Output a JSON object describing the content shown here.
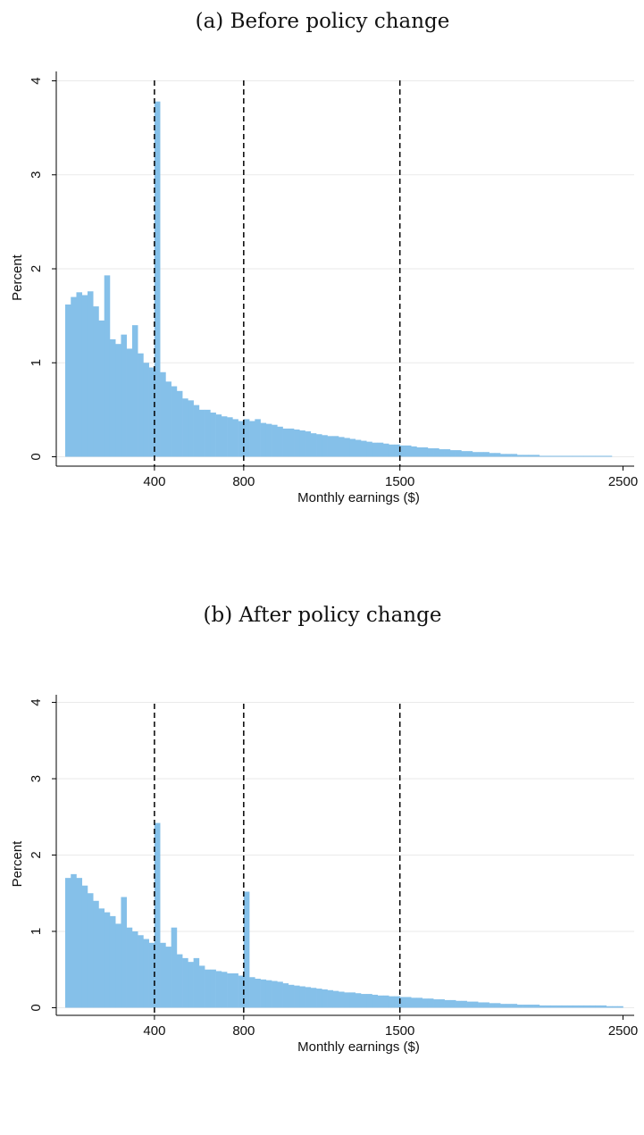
{
  "chart_data": [
    {
      "type": "histogram",
      "title": "(a) Before policy change",
      "x_label": "Monthly earnings ($)",
      "y_label": "Percent",
      "color": "#85c0e9",
      "grid": true,
      "bins": [
        0,
        25,
        50,
        75,
        100,
        125,
        150,
        175,
        200,
        225,
        250,
        275,
        300,
        325,
        350,
        375,
        400,
        425,
        450,
        475,
        500,
        525,
        550,
        575,
        600,
        625,
        650,
        675,
        700,
        725,
        750,
        775,
        800,
        825,
        850,
        875,
        900,
        925,
        950,
        975,
        1000,
        1025,
        1050,
        1075,
        1100,
        1125,
        1150,
        1175,
        1200,
        1225,
        1250,
        1275,
        1300,
        1325,
        1350,
        1375,
        1400,
        1425,
        1450,
        1475,
        1500,
        1525,
        1550,
        1575,
        1600,
        1625,
        1650,
        1675,
        1700,
        1725,
        1750,
        1775,
        1800,
        1825,
        1850,
        1875,
        1900,
        1925,
        1950,
        1975,
        2000,
        2025,
        2050,
        2075,
        2100,
        2125,
        2150,
        2175,
        2200,
        2225,
        2250,
        2275,
        2300,
        2325,
        2350,
        2375,
        2400,
        2425,
        2450
      ],
      "values": [
        1.62,
        1.7,
        1.75,
        1.72,
        1.76,
        1.6,
        1.45,
        1.93,
        1.25,
        1.2,
        1.3,
        1.15,
        1.4,
        1.1,
        1.0,
        0.95,
        3.78,
        0.9,
        0.8,
        0.75,
        0.7,
        0.62,
        0.6,
        0.55,
        0.5,
        0.5,
        0.47,
        0.45,
        0.43,
        0.42,
        0.4,
        0.38,
        0.4,
        0.38,
        0.4,
        0.36,
        0.35,
        0.34,
        0.32,
        0.3,
        0.3,
        0.29,
        0.28,
        0.27,
        0.25,
        0.24,
        0.23,
        0.22,
        0.22,
        0.21,
        0.2,
        0.19,
        0.18,
        0.17,
        0.16,
        0.15,
        0.15,
        0.14,
        0.13,
        0.13,
        0.12,
        0.12,
        0.11,
        0.1,
        0.1,
        0.09,
        0.09,
        0.08,
        0.08,
        0.07,
        0.07,
        0.06,
        0.06,
        0.05,
        0.05,
        0.05,
        0.04,
        0.04,
        0.03,
        0.03,
        0.03,
        0.02,
        0.02,
        0.02,
        0.02,
        0.01,
        0.01,
        0.01,
        0.01,
        0.01,
        0.01,
        0.01,
        0.01,
        0.01,
        0.01,
        0.01,
        0.01,
        0.01
      ],
      "vlines": [
        400,
        800,
        1500
      ],
      "xlim": [
        -40,
        2550
      ],
      "xticks": [
        400,
        800,
        1500,
        2500
      ],
      "ylim": [
        -0.1,
        4.1
      ],
      "yticks": [
        0,
        1,
        2,
        3,
        4
      ]
    },
    {
      "type": "histogram",
      "title": "(b) After policy change",
      "x_label": "Monthly earnings ($)",
      "y_label": "Percent",
      "color": "#85c0e9",
      "grid": true,
      "bins": [
        0,
        25,
        50,
        75,
        100,
        125,
        150,
        175,
        200,
        225,
        250,
        275,
        300,
        325,
        350,
        375,
        400,
        425,
        450,
        475,
        500,
        525,
        550,
        575,
        600,
        625,
        650,
        675,
        700,
        725,
        750,
        775,
        800,
        825,
        850,
        875,
        900,
        925,
        950,
        975,
        1000,
        1025,
        1050,
        1075,
        1100,
        1125,
        1150,
        1175,
        1200,
        1225,
        1250,
        1275,
        1300,
        1325,
        1350,
        1375,
        1400,
        1425,
        1450,
        1475,
        1500,
        1525,
        1550,
        1575,
        1600,
        1625,
        1650,
        1675,
        1700,
        1725,
        1750,
        1775,
        1800,
        1825,
        1850,
        1875,
        1900,
        1925,
        1950,
        1975,
        2000,
        2025,
        2050,
        2075,
        2100,
        2125,
        2150,
        2175,
        2200,
        2225,
        2250,
        2275,
        2300,
        2325,
        2350,
        2375,
        2400,
        2425,
        2450,
        2475,
        2500
      ],
      "values": [
        1.7,
        1.75,
        1.7,
        1.6,
        1.5,
        1.4,
        1.3,
        1.25,
        1.2,
        1.1,
        1.45,
        1.05,
        1.0,
        0.95,
        0.9,
        0.85,
        2.42,
        0.85,
        0.8,
        1.05,
        0.7,
        0.65,
        0.6,
        0.65,
        0.55,
        0.5,
        0.5,
        0.48,
        0.47,
        0.45,
        0.45,
        0.42,
        1.52,
        0.4,
        0.38,
        0.37,
        0.36,
        0.35,
        0.34,
        0.32,
        0.3,
        0.29,
        0.28,
        0.27,
        0.26,
        0.25,
        0.24,
        0.23,
        0.22,
        0.21,
        0.2,
        0.2,
        0.19,
        0.18,
        0.18,
        0.17,
        0.16,
        0.16,
        0.15,
        0.15,
        0.14,
        0.14,
        0.13,
        0.13,
        0.12,
        0.12,
        0.11,
        0.11,
        0.1,
        0.1,
        0.09,
        0.09,
        0.08,
        0.08,
        0.07,
        0.07,
        0.06,
        0.06,
        0.05,
        0.05,
        0.05,
        0.04,
        0.04,
        0.04,
        0.04,
        0.03,
        0.03,
        0.03,
        0.03,
        0.03,
        0.03,
        0.03,
        0.03,
        0.03,
        0.03,
        0.03,
        0.03,
        0.02,
        0.02,
        0.02
      ],
      "vlines": [
        400,
        800,
        1500
      ],
      "xlim": [
        -40,
        2550
      ],
      "xticks": [
        400,
        800,
        1500,
        2500
      ],
      "ylim": [
        -0.1,
        4.1
      ],
      "yticks": [
        0,
        1,
        2,
        3,
        4
      ]
    }
  ]
}
